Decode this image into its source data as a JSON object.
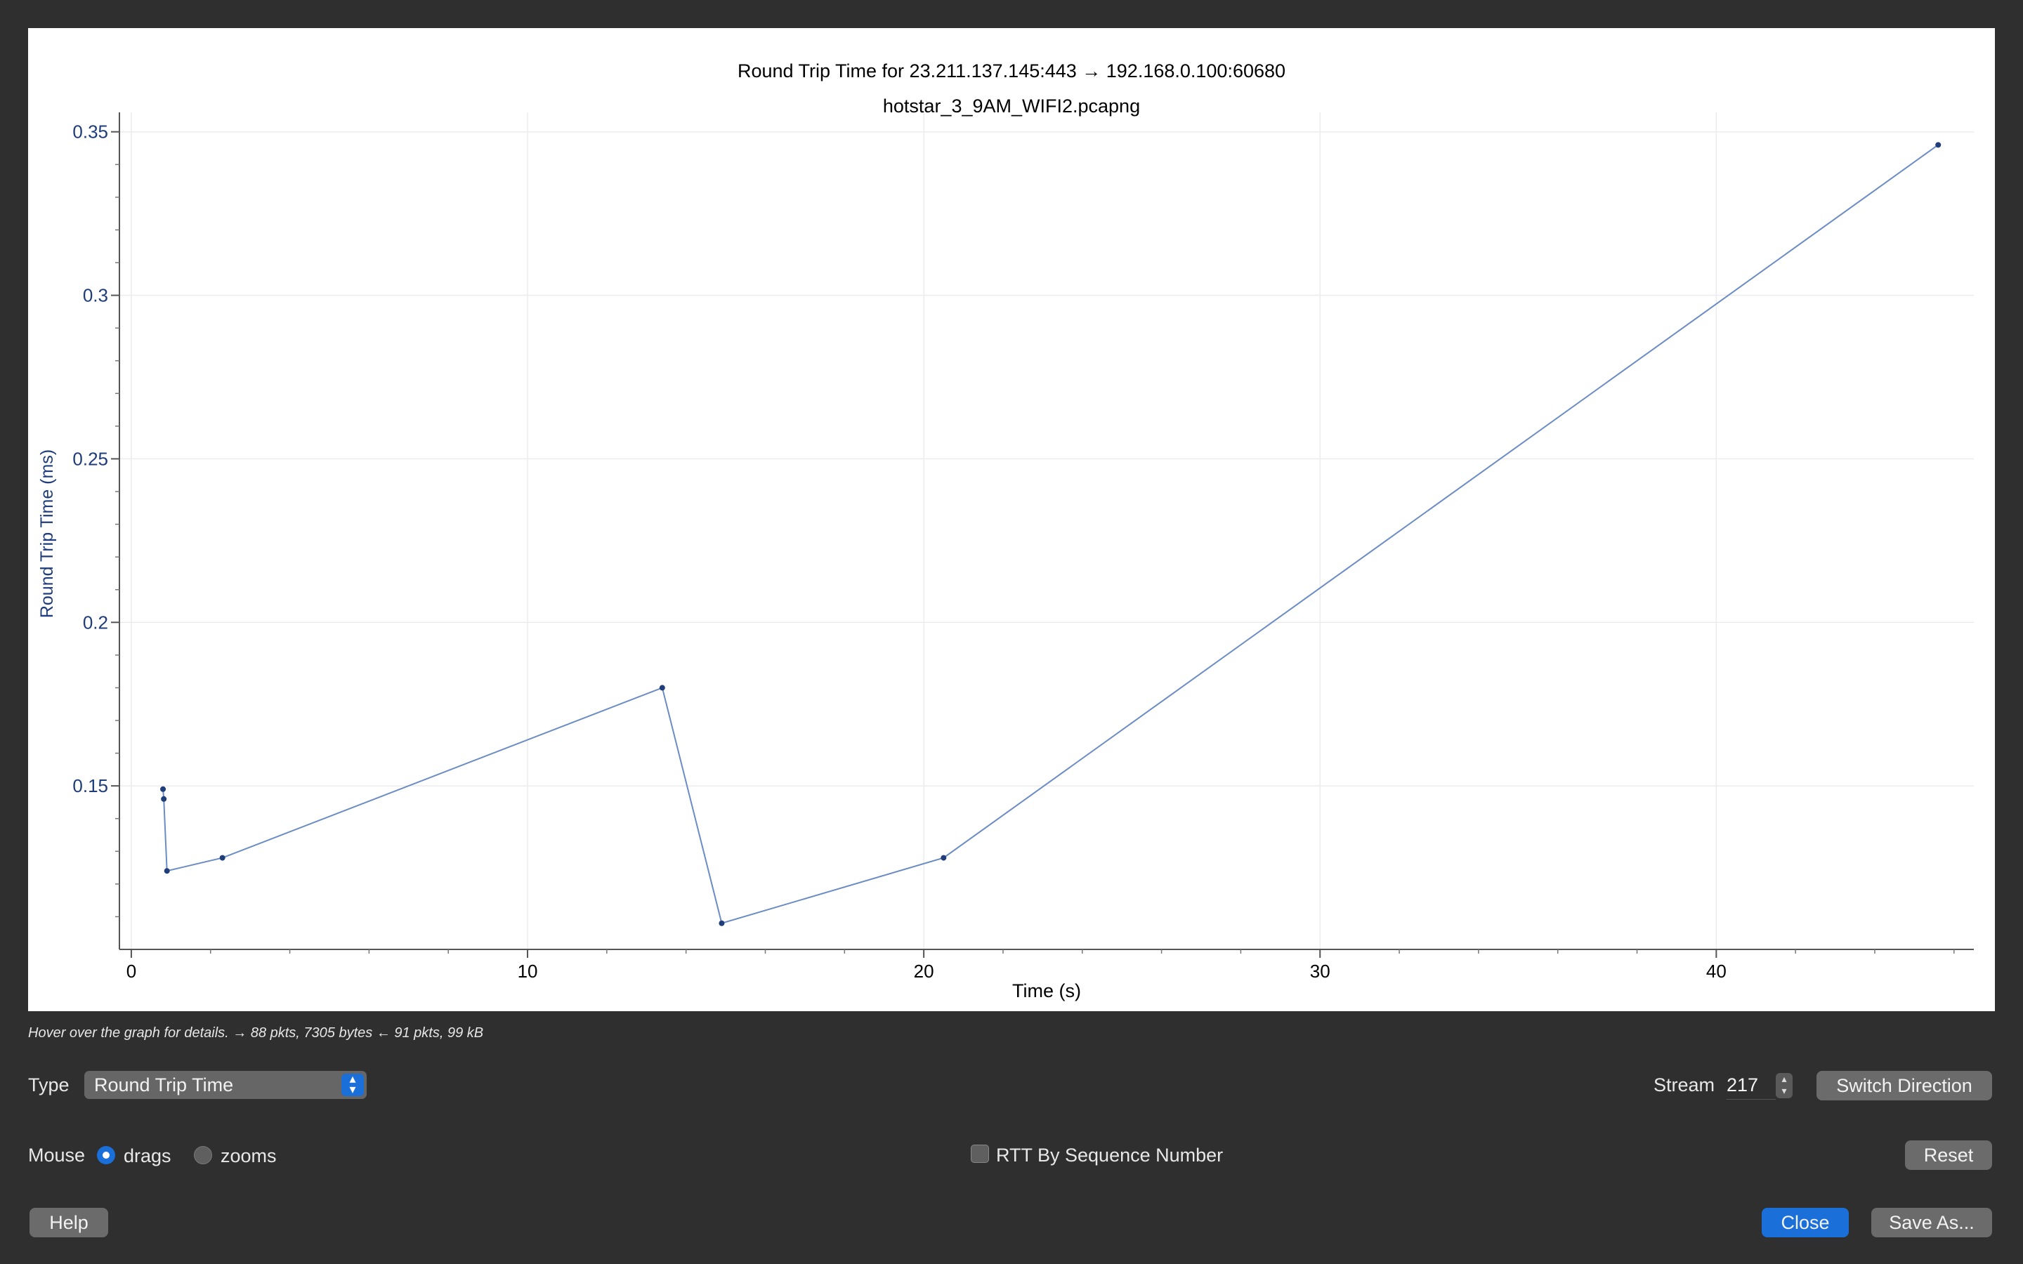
{
  "chart": {
    "title": "Round Trip Time for 23.211.137.145:443 → 192.168.0.100:60680",
    "subtitle": "hotstar_3_9AM_WIFI2.pcapng"
  },
  "chart_data": {
    "type": "line",
    "title": "Round Trip Time for 23.211.137.145:443 → 192.168.0.100:60680",
    "subtitle": "hotstar_3_9AM_WIFI2.pcapng",
    "xlabel": "Time (s)",
    "ylabel": "Round Trip Time (ms)",
    "xlim": [
      -0.3,
      46.5
    ],
    "ylim": [
      0.1,
      0.35
    ],
    "x_ticks": [
      0,
      10,
      20,
      30,
      40
    ],
    "y_ticks": [
      0.15,
      0.2,
      0.25,
      0.3,
      0.35
    ],
    "x_tick_labels": [
      "0",
      "10",
      "20",
      "30",
      "40"
    ],
    "y_tick_labels": [
      "0.15",
      "0.2",
      "0.25",
      "0.3",
      "0.35"
    ],
    "grid": true,
    "series": [
      {
        "x": [
          0.8,
          0.82,
          0.9,
          2.3,
          13.4,
          14.9,
          20.5,
          45.6
        ],
        "y": [
          0.149,
          0.146,
          0.124,
          0.128,
          0.18,
          0.108,
          0.128,
          0.346
        ]
      }
    ],
    "colors": {
      "line": "#6b8cc4",
      "point": "#1f3d7a",
      "axis_text": "#1f3d7a"
    }
  },
  "hint": "Hover over the graph for details. → 88 pkts, 7305 bytes ← 91 pkts, 99 kB",
  "controls": {
    "type_label": "Type",
    "type_value": "Round Trip Time",
    "stream_label": "Stream",
    "stream_value": "217",
    "switch_direction": "Switch Direction",
    "mouse_label": "Mouse",
    "drags_label": "drags",
    "zooms_label": "zooms",
    "mouse_mode": "drags",
    "rtt_by_seq_label": "RTT By Sequence Number",
    "rtt_by_seq_checked": false,
    "reset": "Reset",
    "help": "Help",
    "close": "Close",
    "save_as": "Save As..."
  }
}
